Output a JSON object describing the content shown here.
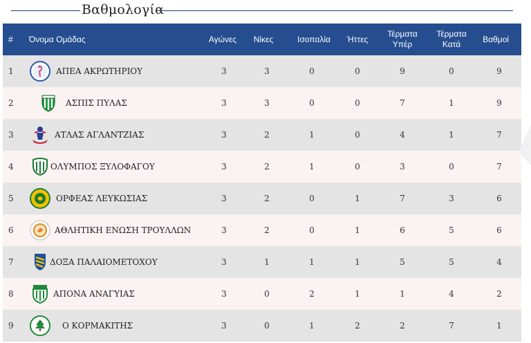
{
  "page": {
    "title": "Βαθμολογία"
  },
  "table": {
    "headers": {
      "rank": "#",
      "team": "Όνομα Ομάδας",
      "played": "Αγώνες",
      "wins": "Νίκες",
      "draws": "Ισοπαλία",
      "losses": "Ήττες",
      "goals_for_1": "Τέρματα",
      "goals_for_2": "Υπέρ",
      "goals_against_1": "Τέρματα",
      "goals_against_2": "Κατά",
      "points": "Βαθμοί"
    },
    "rows": [
      {
        "rank": "1",
        "team": "ΑΠΕΑ ΑΚΡΩΤΗΡΙΟΥ",
        "played": "3",
        "wins": "3",
        "draws": "0",
        "losses": "0",
        "gf": "9",
        "ga": "0",
        "pts": "9",
        "logo": "flamingo-crest-icon"
      },
      {
        "rank": "2",
        "team": "ΑΣΠΙΣ ΠΥΛΑΣ",
        "played": "3",
        "wins": "3",
        "draws": "0",
        "losses": "0",
        "gf": "7",
        "ga": "1",
        "pts": "9",
        "logo": "green-shield-icon"
      },
      {
        "rank": "3",
        "team": "ΑΤΛΑΣ ΑΓΛΑΝΤΖΙΑΣ",
        "played": "3",
        "wins": "2",
        "draws": "1",
        "losses": "0",
        "gf": "4",
        "ga": "1",
        "pts": "7",
        "logo": "atlas-figure-icon"
      },
      {
        "rank": "4",
        "team": "ΟΛΥΜΠΟΣ ΞΥΛΟΦΑΓΟΥ",
        "played": "3",
        "wins": "2",
        "draws": "1",
        "losses": "0",
        "gf": "3",
        "ga": "0",
        "pts": "7",
        "logo": "green-striped-shield-icon"
      },
      {
        "rank": "5",
        "team": "ΟΡΦΕΑΣ ΛΕΥΚΩΣΙΑΣ",
        "played": "3",
        "wins": "2",
        "draws": "0",
        "losses": "1",
        "gf": "7",
        "ga": "3",
        "pts": "6",
        "logo": "yellow-green-round-crest-icon"
      },
      {
        "rank": "6",
        "team": "ΑΘΛΗΤΙΚΗ ΕΝΩΣΗ ΤΡΟΥΛΛΩΝ",
        "played": "3",
        "wins": "2",
        "draws": "0",
        "losses": "1",
        "gf": "6",
        "ga": "5",
        "pts": "6",
        "logo": "orange-round-crest-icon"
      },
      {
        "rank": "7",
        "team": "ΔΟΞΑ ΠΑΛΑΙΟΜΕΤΟΧΟΥ",
        "played": "3",
        "wins": "1",
        "draws": "1",
        "losses": "1",
        "gf": "5",
        "ga": "5",
        "pts": "4",
        "logo": "blue-yellow-shield-icon"
      },
      {
        "rank": "8",
        "team": "ΑΠΟΝΑ ΑΝΑΓΥΙΑΣ",
        "played": "3",
        "wins": "0",
        "draws": "2",
        "losses": "1",
        "gf": "1",
        "ga": "4",
        "pts": "2",
        "logo": "green-white-shield-icon"
      },
      {
        "rank": "9",
        "team": "Ο ΚΟΡΜΑΚΙΤΗΣ",
        "played": "3",
        "wins": "0",
        "draws": "1",
        "losses": "2",
        "gf": "2",
        "ga": "7",
        "pts": "1",
        "logo": "cedar-tree-crest-icon"
      }
    ]
  },
  "colors": {
    "header_bg": "#254d8f",
    "row_odd": "#e4e4e4",
    "row_even": "#fbf2f2",
    "title_line": "#1f3a68"
  }
}
